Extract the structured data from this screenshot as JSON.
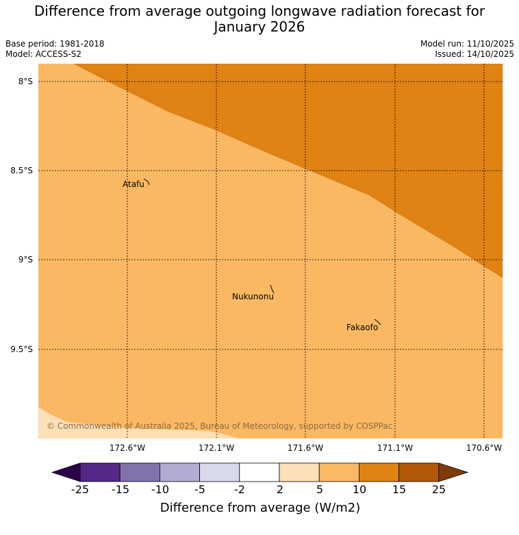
{
  "title_line1": "Difference from average outgoing longwave radiation forecast for",
  "title_line2": "January 2026",
  "base_period": "Base period: 1981-2018",
  "model": "Model: ACCESS-S2",
  "model_run": "Model run: 11/10/2025",
  "issued": "Issued: 14/10/2025",
  "map": {
    "lat_labels": [
      "8°S",
      "8.5°S",
      "9°S",
      "9.5°S"
    ],
    "lon_labels": [
      "172.6°W",
      "172.1°W",
      "171.6°W",
      "171.1°W",
      "170.6°W"
    ],
    "places": [
      {
        "name": "Atafu"
      },
      {
        "name": "Nukunonu"
      },
      {
        "name": "Fakaofo"
      }
    ],
    "copyright": "© Commonwealth of Australia 2025, Bureau of Meteorology, supported by COSPPac",
    "fill_colors": {
      "band_5_10": "#fbb862",
      "band_10_15": "#e08214",
      "band_2_5": "#fee0b6"
    }
  },
  "colorbar": {
    "label": "Difference from average (W/m2)",
    "ticks": [
      "-25",
      "-15",
      "-10",
      "-5",
      "-2",
      "2",
      "5",
      "10",
      "15",
      "25"
    ],
    "colors": [
      "#2d004b",
      "#542788",
      "#8073ac",
      "#b2abd2",
      "#d8daeb",
      "#ffffff",
      "#fee0b6",
      "#fdb863",
      "#e08214",
      "#b35806",
      "#7f3b08"
    ]
  }
}
